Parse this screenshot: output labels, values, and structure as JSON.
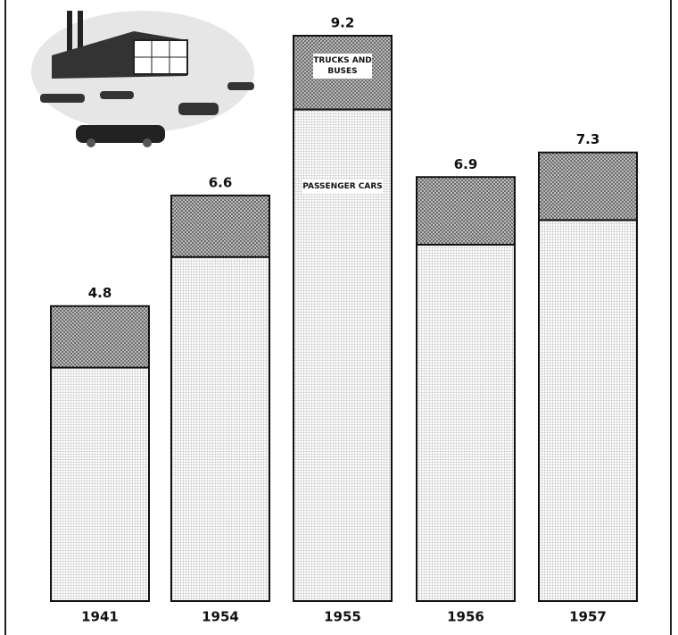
{
  "chart_data": {
    "type": "stacked-bar",
    "categories": [
      "1941",
      "1954",
      "1955",
      "1956",
      "1957"
    ],
    "series": [
      {
        "name": "PASSENGER CARS",
        "color": "#c4c4c4",
        "values": [
          3.8,
          5.6,
          8.0,
          5.8,
          6.2
        ]
      },
      {
        "name": "TRUCKS AND BUSES",
        "color": "#6e6e6e",
        "values": [
          1.0,
          1.0,
          1.2,
          1.1,
          1.1
        ]
      }
    ],
    "totals": [
      4.8,
      6.6,
      9.2,
      6.9,
      7.3
    ]
  }
}
